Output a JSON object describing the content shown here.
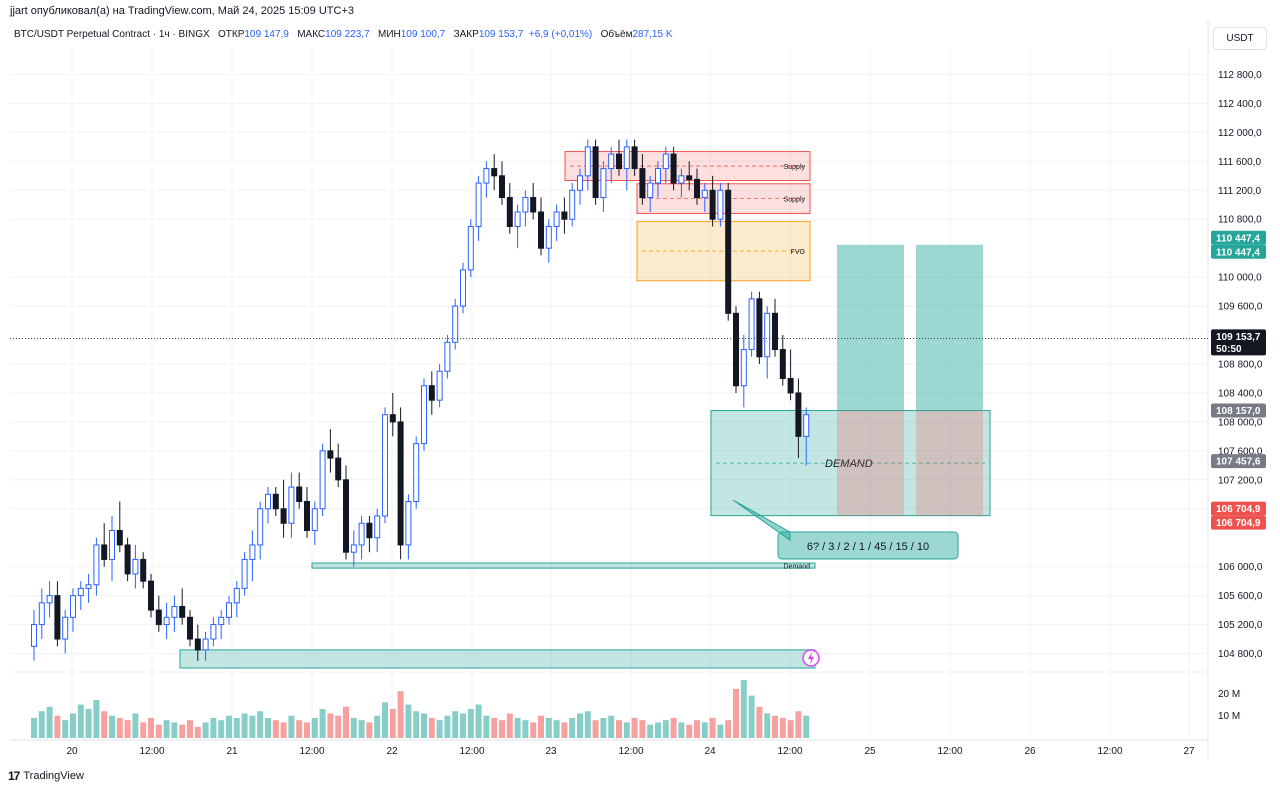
{
  "header": {
    "published": "jjart опубликовал(а) на TradingView.com, Май 24, 2025 15:09 UTC+3",
    "symbol": "BTC/USDT Perpetual Contract · 1ч · BINGX",
    "open_label": "ОТКР",
    "open_value": "109 147,9",
    "high_label": "МАКС",
    "high_value": "109 223,7",
    "low_label": "МИН",
    "low_value": "109 100,7",
    "close_label": "ЗАКР",
    "close_value": "109 153,7",
    "change": "+6,9 (+0,01%)",
    "volume_label": "Объём",
    "volume_value": "287,15 K",
    "currency": "USDT"
  },
  "footer": {
    "brand": "TradingView",
    "logo": "17"
  },
  "colors": {
    "up": "#2962ff",
    "down": "#131722",
    "vol_up": "#26a69a",
    "vol_down": "#ef5350",
    "zone_green": "#26a69a",
    "zone_red": "#ef5350",
    "zone_orange": "#f7a21b"
  },
  "chart_data": {
    "type": "candlestick",
    "y_axis": {
      "min": 104600,
      "max": 113000,
      "ticks": [
        "112 800,0",
        "112 400,0",
        "112 000,0",
        "111 600,0",
        "111 200,0",
        "110 800,0",
        "110 000,0",
        "109 600,0",
        "108 800,0",
        "108 400,0",
        "108 000,0",
        "107 600,0",
        "107 200,0",
        "106 800,0",
        "106 000,0",
        "105 600,0",
        "105 200,0",
        "104 800,0"
      ],
      "tick_values": [
        112800,
        112400,
        112000,
        111600,
        111200,
        110800,
        110000,
        109600,
        108800,
        108400,
        108000,
        107600,
        107200,
        106800,
        106000,
        105600,
        105200,
        104800
      ]
    },
    "x_axis": {
      "ticks": [
        "20",
        "12:00",
        "21",
        "12:00",
        "22",
        "12:00",
        "23",
        "12:00",
        "24",
        "12:00",
        "25",
        "12:00",
        "26",
        "12:00",
        "27"
      ]
    },
    "volume_axis": {
      "ticks": [
        "20 M",
        "10 M"
      ],
      "tick_values": [
        20,
        10
      ]
    },
    "price_labels": [
      {
        "text": "110 447,4",
        "value": 110447.4,
        "color": "#26a69a"
      },
      {
        "text": "110 447,4",
        "value": 110447.4,
        "color": "#26a69a"
      },
      {
        "text": "109 153,7",
        "value": 109153.7,
        "color": "#131722"
      },
      {
        "text": "50:50",
        "value": 109153.7,
        "color": "#131722"
      },
      {
        "text": "108 157,0",
        "value": 108157,
        "color": "#787b86"
      },
      {
        "text": "107 457,6",
        "value": 107457.6,
        "color": "#787b86"
      },
      {
        "text": "106 704,9",
        "value": 106704.9,
        "color": "#ef5350"
      },
      {
        "text": "106 704,9",
        "value": 106704.9,
        "color": "#ef5350"
      }
    ],
    "zones": [
      {
        "label": "Supply",
        "top": 111735,
        "bottom": 111335,
        "kind": "red",
        "from_index": 129,
        "to_index": 205
      },
      {
        "label": "Supply",
        "top": 111290,
        "bottom": 110880,
        "kind": "red",
        "from_index": 147,
        "to_index": 205
      },
      {
        "label": "FVG",
        "top": 110770,
        "bottom": 109950,
        "kind": "orange",
        "from_index": 145,
        "to_index": 205
      },
      {
        "label": "DEMAND",
        "top": 108157,
        "bottom": 106704.9,
        "kind": "green",
        "from_index": 160,
        "to_index": 208
      },
      {
        "label": "Demand",
        "top": 106050,
        "bottom": 105980,
        "kind": "green",
        "from_index": 71,
        "to_index": 205
      },
      {
        "label": "",
        "top": 104850,
        "bottom": 104600,
        "kind": "green",
        "from_index": 40,
        "to_index": 205
      }
    ],
    "callout": "6? / 3 / 2 / 1 / 45 / 15 / 10",
    "current_price": 109153.7,
    "candles": [
      [
        104900,
        105400,
        104700,
        105200
      ],
      [
        105200,
        105700,
        105000,
        105500
      ],
      [
        105500,
        105800,
        105300,
        105600
      ],
      [
        105600,
        105800,
        104900,
        105000
      ],
      [
        105000,
        105400,
        104800,
        105300
      ],
      [
        105300,
        105700,
        105100,
        105600
      ],
      [
        105600,
        105800,
        105400,
        105700
      ],
      [
        105700,
        105900,
        105500,
        105750
      ],
      [
        105750,
        106400,
        105600,
        106300
      ],
      [
        106300,
        106600,
        106000,
        106100
      ],
      [
        106100,
        106700,
        105800,
        106500
      ],
      [
        106500,
        106900,
        106200,
        106300
      ],
      [
        106300,
        106400,
        105800,
        105900
      ],
      [
        105900,
        106300,
        105700,
        106100
      ],
      [
        106100,
        106200,
        105700,
        105800
      ],
      [
        105800,
        105900,
        105300,
        105400
      ],
      [
        105400,
        105600,
        105100,
        105200
      ],
      [
        105200,
        105500,
        105000,
        105300
      ],
      [
        105300,
        105600,
        105100,
        105450
      ],
      [
        105450,
        105700,
        105200,
        105300
      ],
      [
        105300,
        105400,
        104900,
        105000
      ],
      [
        105000,
        105200,
        104700,
        104850
      ],
      [
        104850,
        105100,
        104700,
        105000
      ],
      [
        105000,
        105300,
        104900,
        105200
      ],
      [
        105200,
        105400,
        105000,
        105300
      ],
      [
        105300,
        105600,
        105200,
        105500
      ],
      [
        105500,
        105800,
        105300,
        105700
      ],
      [
        105700,
        106200,
        105600,
        106100
      ],
      [
        106100,
        106500,
        105800,
        106300
      ],
      [
        106300,
        106900,
        106100,
        106800
      ],
      [
        106800,
        107100,
        106600,
        107000
      ],
      [
        107000,
        107100,
        106700,
        106800
      ],
      [
        106800,
        107200,
        106400,
        106600
      ],
      [
        106600,
        107300,
        106400,
        107100
      ],
      [
        107100,
        107300,
        106800,
        106900
      ],
      [
        106900,
        107100,
        106400,
        106500
      ],
      [
        106500,
        106900,
        106300,
        106800
      ],
      [
        106800,
        107700,
        106700,
        107600
      ],
      [
        107600,
        107900,
        107300,
        107500
      ],
      [
        107500,
        107700,
        107100,
        107200
      ],
      [
        107200,
        107400,
        106100,
        106200
      ],
      [
        106200,
        106500,
        106000,
        106300
      ],
      [
        106300,
        106700,
        106100,
        106600
      ],
      [
        106600,
        106700,
        106200,
        106400
      ],
      [
        106400,
        106800,
        106200,
        106700
      ],
      [
        106700,
        108200,
        106600,
        108100
      ],
      [
        108100,
        108400,
        107800,
        108000
      ],
      [
        108000,
        108200,
        106100,
        106300
      ],
      [
        106300,
        107000,
        106100,
        106900
      ],
      [
        106900,
        107800,
        106800,
        107700
      ],
      [
        107700,
        108600,
        107600,
        108500
      ],
      [
        108500,
        108700,
        108100,
        108300
      ],
      [
        108300,
        108800,
        108200,
        108700
      ],
      [
        108700,
        109200,
        108600,
        109100
      ],
      [
        109100,
        109700,
        109000,
        109600
      ],
      [
        109600,
        110200,
        109500,
        110100
      ],
      [
        110100,
        110800,
        110000,
        110700
      ],
      [
        110700,
        111400,
        110500,
        111300
      ],
      [
        111300,
        111600,
        111100,
        111500
      ],
      [
        111500,
        111700,
        111200,
        111400
      ],
      [
        111400,
        111600,
        111000,
        111100
      ],
      [
        111100,
        111300,
        110600,
        110700
      ],
      [
        110700,
        111000,
        110400,
        110900
      ],
      [
        110900,
        111200,
        110700,
        111100
      ],
      [
        111100,
        111300,
        110800,
        110900
      ],
      [
        110900,
        111100,
        110300,
        110400
      ],
      [
        110400,
        110800,
        110200,
        110700
      ],
      [
        110700,
        111000,
        110500,
        110900
      ],
      [
        110900,
        111100,
        110600,
        110800
      ],
      [
        110800,
        111300,
        110700,
        111200
      ],
      [
        111200,
        111500,
        111000,
        111400
      ],
      [
        111400,
        111900,
        111200,
        111800
      ],
      [
        111800,
        111900,
        111000,
        111100
      ],
      [
        111100,
        111600,
        110900,
        111500
      ],
      [
        111500,
        111800,
        111300,
        111700
      ],
      [
        111700,
        111900,
        111400,
        111500
      ],
      [
        111500,
        111900,
        111200,
        111800
      ],
      [
        111800,
        111900,
        111400,
        111500
      ],
      [
        111500,
        111700,
        111000,
        111100
      ],
      [
        111100,
        111400,
        110900,
        111300
      ],
      [
        111300,
        111600,
        111100,
        111500
      ],
      [
        111500,
        111800,
        111300,
        111700
      ],
      [
        111700,
        111800,
        111200,
        111300
      ],
      [
        111300,
        111500,
        111100,
        111400
      ],
      [
        111400,
        111600,
        111200,
        111350
      ],
      [
        111350,
        111500,
        111000,
        111100
      ],
      [
        111100,
        111300,
        110900,
        111200
      ],
      [
        111200,
        111400,
        110700,
        110800
      ],
      [
        110800,
        111300,
        110700,
        111200
      ],
      [
        111200,
        111300,
        109400,
        109500
      ],
      [
        109500,
        109600,
        108400,
        108500
      ],
      [
        108500,
        109200,
        108200,
        109000
      ],
      [
        109000,
        109800,
        108900,
        109700
      ],
      [
        109700,
        109800,
        108800,
        108900
      ],
      [
        108900,
        109600,
        108600,
        109500
      ],
      [
        109500,
        109700,
        108900,
        109000
      ],
      [
        109000,
        109200,
        108500,
        108600
      ],
      [
        108600,
        109000,
        108300,
        108400
      ],
      [
        108400,
        108600,
        107500,
        107800
      ],
      [
        107800,
        108200,
        107400,
        108100
      ]
    ],
    "volume_note": "volumes shown as bars beneath candles, values in M",
    "volumes": [
      9,
      12,
      14,
      10,
      8,
      11,
      15,
      13,
      17,
      12,
      10,
      9,
      8,
      11,
      7,
      9,
      6,
      8,
      7,
      6,
      8,
      5,
      7,
      9,
      8,
      10,
      9,
      11,
      10,
      12,
      9,
      8,
      7,
      10,
      8,
      7,
      9,
      13,
      11,
      10,
      14,
      9,
      8,
      7,
      10,
      16,
      13,
      21,
      15,
      12,
      11,
      9,
      8,
      10,
      12,
      11,
      13,
      15,
      10,
      9,
      8,
      11,
      9,
      8,
      7,
      10,
      9,
      8,
      7,
      9,
      11,
      12,
      8,
      9,
      10,
      8,
      7,
      9,
      8,
      6,
      7,
      8,
      9,
      7,
      6,
      8,
      7,
      9,
      6,
      8,
      22,
      26,
      19,
      14,
      11,
      10,
      9,
      8,
      12,
      10
    ],
    "overlay_projection": [
      {
        "from": 110447.4,
        "to": 108157,
        "kind": "target"
      },
      {
        "from": 108157,
        "to": 106704.9,
        "kind": "stop"
      }
    ]
  }
}
